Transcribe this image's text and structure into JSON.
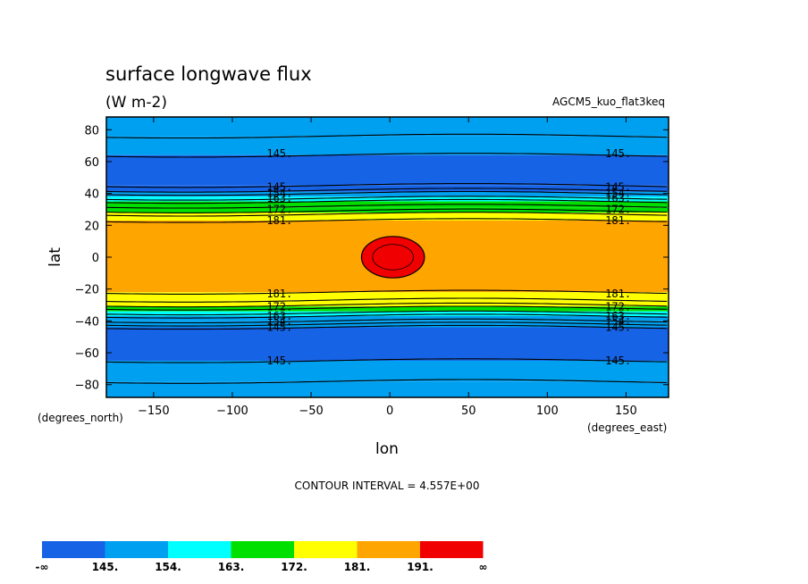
{
  "chart_data": {
    "type": "heatmap",
    "title": "surface longwave flux",
    "units": "(W m-2)",
    "run_label": "AGCM5_kuo_flat3keq",
    "xlabel": "lon",
    "ylabel": "lat",
    "x_units_label": "(degrees_east)",
    "y_units_label": "(degrees_north)",
    "xlim": [
      -180,
      177
    ],
    "ylim": [
      -88,
      88
    ],
    "x_ticks": [
      -150,
      -100,
      -50,
      0,
      50,
      100,
      150
    ],
    "y_ticks": [
      80,
      60,
      40,
      20,
      0,
      -20,
      -40,
      -60,
      -80
    ],
    "contour_interval_text": "CONTOUR INTERVAL = 4.557E+00",
    "legend": {
      "colors": [
        "#1763e6",
        "#00a0f0",
        "#00ffff",
        "#00e000",
        "#ffff00",
        "#ffa500",
        "#f00000"
      ],
      "labels": [
        "-∞",
        "145.",
        "154.",
        "163.",
        "172.",
        "181.",
        "191.",
        "∞"
      ]
    },
    "bands": [
      {
        "y0": 88,
        "y1": 76,
        "color": "#00a0f0"
      },
      {
        "y0": 76,
        "y1": 64,
        "color": "#00a0f0"
      },
      {
        "y0": 64,
        "y1": 45,
        "color": "#1763e6"
      },
      {
        "y0": 45,
        "y1": 41,
        "color": "#1763e6"
      },
      {
        "y0": 41,
        "y1": 38,
        "color": "#00a0f0"
      },
      {
        "y0": 38,
        "y1": 35,
        "color": "#00ffff"
      },
      {
        "y0": 35,
        "y1": 31,
        "color": "#00e000"
      },
      {
        "y0": 31,
        "y1": 28,
        "color": "#00e000"
      },
      {
        "y0": 28,
        "y1": 23,
        "color": "#ffff00"
      },
      {
        "y0": 23,
        "y1": -22,
        "color": "#ffa500"
      },
      {
        "y0": -22,
        "y1": -27,
        "color": "#ffff00"
      },
      {
        "y0": -27,
        "y1": -31,
        "color": "#ffff00"
      },
      {
        "y0": -31,
        "y1": -34,
        "color": "#00e000"
      },
      {
        "y0": -34,
        "y1": -37,
        "color": "#00ffff"
      },
      {
        "y0": -37,
        "y1": -40,
        "color": "#00a0f0"
      },
      {
        "y0": -40,
        "y1": -44,
        "color": "#00a0f0"
      },
      {
        "y0": -44,
        "y1": -65,
        "color": "#1763e6"
      },
      {
        "y0": -65,
        "y1": -78,
        "color": "#00a0f0"
      },
      {
        "y0": -78,
        "y1": -88,
        "color": "#00a0f0"
      }
    ],
    "contour_lines": [
      76,
      64,
      45,
      42,
      40,
      37,
      35,
      32,
      29,
      27,
      23,
      -22,
      -27,
      -30,
      -32,
      -35,
      -37,
      -40,
      -42,
      -44,
      -65,
      -78
    ],
    "blob": {
      "center_lon": 2,
      "center_lat": 0,
      "radius_lon": 20,
      "radius_lat": 13,
      "inner_radius_lon": 13,
      "inner_radius_lat": 8,
      "color": "#f00000"
    },
    "contour_labels": [
      {
        "text": "145.",
        "lat": 65,
        "lon": -70
      },
      {
        "text": "145.",
        "lat": 65,
        "lon": 145
      },
      {
        "text": "145.",
        "lat": 44,
        "lon": -70
      },
      {
        "text": "154.",
        "lat": 40,
        "lon": -70
      },
      {
        "text": "163.",
        "lat": 37,
        "lon": -70
      },
      {
        "text": "172.",
        "lat": 30,
        "lon": -70
      },
      {
        "text": "181.",
        "lat": 23,
        "lon": -70
      },
      {
        "text": "145.",
        "lat": 44,
        "lon": 145
      },
      {
        "text": "154.",
        "lat": 40,
        "lon": 145
      },
      {
        "text": "163.",
        "lat": 37,
        "lon": 145
      },
      {
        "text": "172.",
        "lat": 30,
        "lon": 145
      },
      {
        "text": "181.",
        "lat": 23,
        "lon": 145
      },
      {
        "text": "181.",
        "lat": -23,
        "lon": -70
      },
      {
        "text": "172.",
        "lat": -31,
        "lon": -70
      },
      {
        "text": "163.",
        "lat": -37,
        "lon": -70
      },
      {
        "text": "154.",
        "lat": -40,
        "lon": -70
      },
      {
        "text": "145.",
        "lat": -44,
        "lon": -70
      },
      {
        "text": "181.",
        "lat": -23,
        "lon": 145
      },
      {
        "text": "172.",
        "lat": -31,
        "lon": 145
      },
      {
        "text": "163.",
        "lat": -37,
        "lon": 145
      },
      {
        "text": "154.",
        "lat": -40,
        "lon": 145
      },
      {
        "text": "145.",
        "lat": -44,
        "lon": 145
      },
      {
        "text": "145.",
        "lat": -65,
        "lon": -70
      },
      {
        "text": "145.",
        "lat": -65,
        "lon": 145
      }
    ]
  }
}
